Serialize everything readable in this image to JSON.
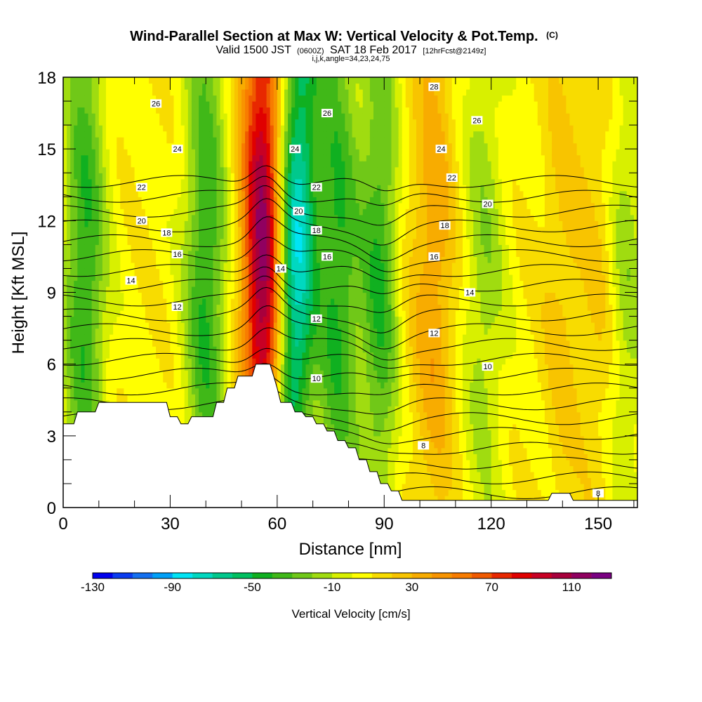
{
  "title": {
    "main": "Wind-Parallel Section at Max W: Vertical Velocity & Pot.Temp.",
    "copyright": "(C)",
    "valid_prefix": "Valid 1500 JST",
    "valid_zulu": "(0600Z)",
    "valid_date": "SAT 18 Feb 2017",
    "forecast": "[12hrFcst@2149z]",
    "indices": "i,j,k,angle=34,23,24,75"
  },
  "chart_data": {
    "type": "heatmap",
    "xlabel": "Distance [nm]",
    "ylabel": "Height [Kft MSL]",
    "xlim": [
      0,
      161
    ],
    "ylim": [
      0,
      18
    ],
    "x_ticks": [
      0,
      30,
      60,
      90,
      120,
      150
    ],
    "y_ticks": [
      0,
      3,
      6,
      9,
      12,
      15,
      18
    ],
    "shaded_field": {
      "name": "Vertical Velocity [cm/s]",
      "colorbar_labels": [
        -130,
        -90,
        -50,
        -10,
        30,
        70,
        110
      ],
      "levels": [
        -130,
        -120,
        -110,
        -100,
        -90,
        -80,
        -70,
        -60,
        -50,
        -40,
        -30,
        -20,
        -10,
        0,
        10,
        20,
        30,
        40,
        50,
        60,
        70,
        80,
        90,
        100,
        110,
        120
      ],
      "colors": [
        "#0000ee",
        "#0a3cf0",
        "#1470f0",
        "#00a0f8",
        "#00e4f4",
        "#00d8c0",
        "#00c88c",
        "#00c060",
        "#10b020",
        "#40b818",
        "#70c818",
        "#a0dc10",
        "#d8f000",
        "#ffff00",
        "#f8dc00",
        "#f8c400",
        "#f8ac00",
        "#f89400",
        "#f87c00",
        "#f05a00",
        "#e82800",
        "#e00000",
        "#c80024",
        "#a8003c",
        "#900060",
        "#7a0082"
      ],
      "updraft_bands": [
        {
          "x_center": 57,
          "x_top_center": 56,
          "peak_cm_s": 115
        },
        {
          "x_center": 92,
          "peak_cm_s": 40
        },
        {
          "x_center": 104,
          "peak_cm_s": 30
        },
        {
          "x_center": 140,
          "peak_cm_s": 15
        },
        {
          "x_center": 152,
          "peak_cm_s": 20
        }
      ],
      "downdraft_bands": [
        {
          "x_center": 6,
          "peak_cm_s": -50
        },
        {
          "x_center": 40,
          "peak_cm_s": -50
        },
        {
          "x_center": 63,
          "x_top_center": 66,
          "peak_cm_s": -95
        },
        {
          "x_center": 77,
          "peak_cm_s": -50
        },
        {
          "x_center": 90,
          "peak_cm_s": -80
        },
        {
          "x_center": 118,
          "peak_cm_s": -25
        },
        {
          "x_center": 157,
          "peak_cm_s": -30
        }
      ]
    },
    "contour_field": {
      "name": "Potential Temperature",
      "interval": 1,
      "labeled_levels": [
        {
          "value": "8",
          "x": 101,
          "y": 2.6
        },
        {
          "value": "8",
          "x": 150,
          "y": 0.6
        },
        {
          "value": "10",
          "x": 71,
          "y": 5.4
        },
        {
          "value": "10",
          "x": 119,
          "y": 5.9
        },
        {
          "value": "12",
          "x": 32,
          "y": 8.4
        },
        {
          "value": "12",
          "x": 71,
          "y": 7.9
        },
        {
          "value": "12",
          "x": 104,
          "y": 7.3
        },
        {
          "value": "14",
          "x": 19,
          "y": 9.5
        },
        {
          "value": "14",
          "x": 61,
          "y": 10.0
        },
        {
          "value": "14",
          "x": 114,
          "y": 9.0
        },
        {
          "value": "16",
          "x": 32,
          "y": 10.6
        },
        {
          "value": "16",
          "x": 74,
          "y": 10.5
        },
        {
          "value": "16",
          "x": 104,
          "y": 10.5
        },
        {
          "value": "18",
          "x": 29,
          "y": 11.5
        },
        {
          "value": "18",
          "x": 71,
          "y": 11.6
        },
        {
          "value": "18",
          "x": 107,
          "y": 11.8
        },
        {
          "value": "20",
          "x": 22,
          "y": 12.0
        },
        {
          "value": "20",
          "x": 66,
          "y": 12.4
        },
        {
          "value": "20",
          "x": 119,
          "y": 12.7
        },
        {
          "value": "22",
          "x": 22,
          "y": 13.4
        },
        {
          "value": "22",
          "x": 71,
          "y": 13.4
        },
        {
          "value": "22",
          "x": 109,
          "y": 13.8
        },
        {
          "value": "24",
          "x": 32,
          "y": 15.0
        },
        {
          "value": "24",
          "x": 65,
          "y": 15.0
        },
        {
          "value": "24",
          "x": 106,
          "y": 15.0
        },
        {
          "value": "26",
          "x": 26,
          "y": 16.9
        },
        {
          "value": "26",
          "x": 74,
          "y": 16.5
        },
        {
          "value": "26",
          "x": 116,
          "y": 16.2
        },
        {
          "value": "28",
          "x": 104,
          "y": 17.6
        }
      ]
    },
    "terrain": {
      "x": [
        0,
        3,
        4,
        9,
        10,
        29,
        30,
        32,
        33,
        35,
        36,
        42,
        43,
        45,
        46,
        48,
        49,
        53,
        54,
        56,
        57,
        58,
        59,
        60,
        61,
        64,
        65,
        67,
        68,
        70,
        71,
        73,
        74,
        76,
        77,
        79,
        80,
        82,
        83,
        85,
        86,
        88,
        89,
        91,
        92,
        94,
        95,
        136,
        137,
        142,
        143,
        161
      ],
      "y": [
        3.5,
        3.5,
        4.0,
        4.0,
        4.4,
        4.4,
        3.8,
        3.8,
        3.5,
        3.5,
        3.8,
        3.8,
        4.4,
        4.4,
        5.0,
        5.0,
        5.5,
        5.5,
        6.0,
        6.0,
        6.0,
        6.0,
        5.5,
        5.0,
        4.4,
        4.4,
        4.0,
        4.0,
        3.8,
        3.8,
        3.5,
        3.5,
        3.2,
        3.2,
        2.8,
        2.8,
        2.5,
        2.5,
        2.0,
        2.0,
        1.5,
        1.5,
        1.0,
        1.0,
        0.7,
        0.7,
        0.3,
        0.3,
        0.6,
        0.6,
        0.3,
        0.3
      ]
    }
  },
  "colors": {
    "background": "#ffffff",
    "terrain": "#ffffff",
    "contour": "#000000"
  }
}
